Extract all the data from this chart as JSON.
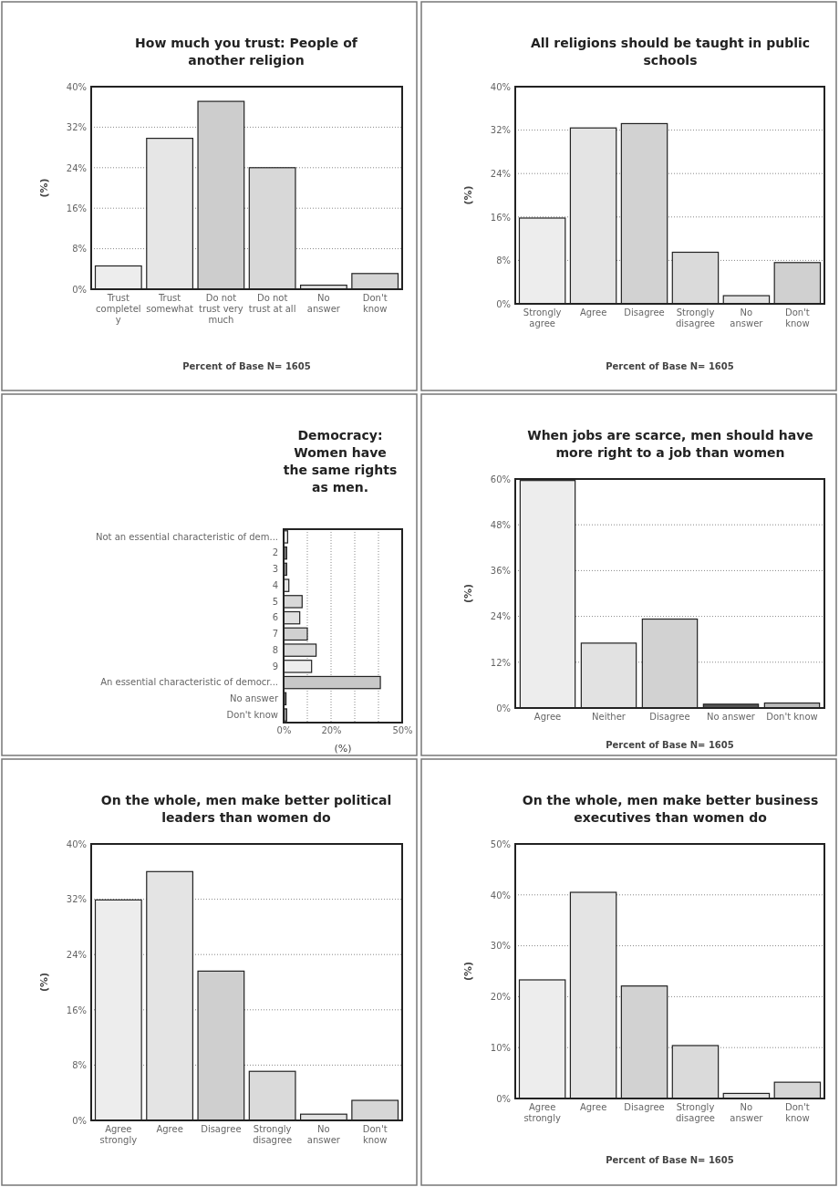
{
  "chart_data": [
    {
      "type": "bar",
      "title": "How much you trust: People of another religion",
      "ylabel": "(%)",
      "xlabel": "Percent of Base N= 1605",
      "categories": [
        "Trust completely",
        "Trust somewhat",
        "Do not trust very much",
        "Do not trust at all",
        "No answer",
        "Don't know"
      ],
      "values": [
        4.6,
        29.8,
        37.1,
        24.0,
        0.8,
        3.1
      ],
      "colors": [
        "#ededed",
        "#e6e6e6",
        "#cdcdcd",
        "#d8d8d8",
        "#e2e2e2",
        "#d4d4d4"
      ],
      "ylim": [
        0,
        40
      ],
      "yticks": [
        {
          "value": 0,
          "label": "0%"
        },
        {
          "value": 8,
          "label": "8%"
        },
        {
          "value": 16,
          "label": "16%"
        },
        {
          "value": 24,
          "label": "24%"
        },
        {
          "value": 32,
          "label": "32%"
        },
        {
          "value": 40,
          "label": "40%"
        }
      ],
      "grid": "y"
    },
    {
      "type": "bar",
      "title": "All religions should be taught in public schools",
      "ylabel": "(%)",
      "xlabel": "Percent of Base N= 1605",
      "categories": [
        "Strongly agree",
        "Agree",
        "Disagree",
        "Strongly disagree",
        "No answer",
        "Don't know"
      ],
      "values": [
        15.8,
        32.4,
        33.2,
        9.5,
        1.5,
        7.6
      ],
      "colors": [
        "#ededed",
        "#e4e4e4",
        "#d2d2d2",
        "#dadada",
        "#e2e2e2",
        "#d0d0d0"
      ],
      "ylim": [
        0,
        40
      ],
      "yticks": [
        {
          "value": 0,
          "label": "0%"
        },
        {
          "value": 8,
          "label": "8%"
        },
        {
          "value": 16,
          "label": "16%"
        },
        {
          "value": 24,
          "label": "24%"
        },
        {
          "value": 32,
          "label": "32%"
        },
        {
          "value": 40,
          "label": "40%"
        }
      ],
      "grid": "y"
    },
    {
      "type": "bar",
      "orientation": "horizontal",
      "title": "Democracy: Women have the same rights as men.",
      "xlabel": "(%)",
      "categories": [
        "Not an essential characteristic of dem...",
        "2",
        "3",
        "4",
        "5",
        "6",
        "7",
        "8",
        "9",
        "An essential characteristic of democr...",
        "No answer",
        "Don't know"
      ],
      "values": [
        1.7,
        1.3,
        1.3,
        2.2,
        7.8,
        6.8,
        10.0,
        13.7,
        11.8,
        40.8,
        1.0,
        1.3
      ],
      "colors": [
        "#ededed",
        "#777777",
        "#888888",
        "#e6e6e6",
        "#d8d8d8",
        "#e0e0e0",
        "#d0d0d0",
        "#dadada",
        "#eeeeee",
        "#c8c8c8",
        "#666666",
        "#999999"
      ],
      "xlim": [
        0,
        50
      ],
      "xticks": [
        {
          "value": 0,
          "label": "0%"
        },
        {
          "value": 10,
          "label": null
        },
        {
          "value": 20,
          "label": "20%"
        },
        {
          "value": 30,
          "label": null
        },
        {
          "value": 40,
          "label": null
        },
        {
          "value": 50,
          "label": "50%"
        }
      ],
      "grid": "x"
    },
    {
      "type": "bar",
      "title": "When jobs are scarce, men should have more right to a job than women",
      "ylabel": "(%)",
      "xlabel": "Percent of Base N= 1605",
      "categories": [
        "Agree",
        "Neither",
        "Disagree",
        "No answer",
        "Don't know"
      ],
      "values": [
        59.6,
        17.0,
        23.3,
        1.0,
        1.3
      ],
      "colors": [
        "#ededed",
        "#e2e2e2",
        "#d2d2d2",
        "#555555",
        "#bbbbbb"
      ],
      "ylim": [
        0,
        60
      ],
      "yticks": [
        {
          "value": 0,
          "label": "0%"
        },
        {
          "value": 12,
          "label": "12%"
        },
        {
          "value": 24,
          "label": "24%"
        },
        {
          "value": 36,
          "label": "36%"
        },
        {
          "value": 48,
          "label": "48%"
        },
        {
          "value": 60,
          "label": "60%"
        }
      ],
      "grid": "y"
    },
    {
      "type": "bar",
      "title": "On the whole, men make better political leaders than women do",
      "ylabel": "(%)",
      "categories": [
        "Agree strongly",
        "Agree",
        "Disagree",
        "Strongly disagree",
        "No answer",
        "Don't know"
      ],
      "values": [
        31.9,
        36.0,
        21.6,
        7.1,
        0.9,
        2.9
      ],
      "colors": [
        "#ededed",
        "#e4e4e4",
        "#cfcfcf",
        "#dadada",
        "#e2e2e2",
        "#d6d6d6"
      ],
      "ylim": [
        0,
        40
      ],
      "yticks": [
        {
          "value": 0,
          "label": "0%"
        },
        {
          "value": 8,
          "label": "8%"
        },
        {
          "value": 16,
          "label": "16%"
        },
        {
          "value": 24,
          "label": "24%"
        },
        {
          "value": 32,
          "label": "32%"
        },
        {
          "value": 40,
          "label": "40%"
        }
      ],
      "grid": "y"
    },
    {
      "type": "bar",
      "title": "On the whole, men make better business executives than women do",
      "ylabel": "(%)",
      "xlabel": "Percent of Base N= 1605",
      "categories": [
        "Agree strongly",
        "Agree",
        "Disagree",
        "Strongly disagree",
        "No answer",
        "Don't know"
      ],
      "values": [
        23.3,
        40.5,
        22.1,
        10.4,
        1.0,
        3.2
      ],
      "colors": [
        "#ededed",
        "#e4e4e4",
        "#d2d2d2",
        "#dadada",
        "#e2e2e2",
        "#d6d6d6"
      ],
      "ylim": [
        0,
        50
      ],
      "yticks": [
        {
          "value": 0,
          "label": "0%"
        },
        {
          "value": 10,
          "label": "10%"
        },
        {
          "value": 20,
          "label": "20%"
        },
        {
          "value": 30,
          "label": "30%"
        },
        {
          "value": 40,
          "label": "40%"
        },
        {
          "value": 50,
          "label": "50%"
        }
      ],
      "grid": "y"
    }
  ]
}
